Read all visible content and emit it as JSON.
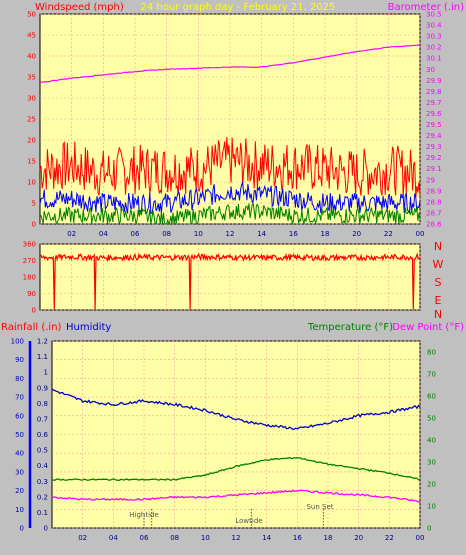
{
  "header": {
    "left_label": "Windspeed (mph)",
    "title": "24 hour graph day - February 21, 2025",
    "right_label": "Barometer (.in)"
  },
  "bottom_header": {
    "rainfall": "Rainfall (.in)",
    "humidity": "Humidity",
    "temperature": "Temperature (°F)",
    "dewpoint": "Dew Point (°F)"
  },
  "annotations": {
    "hightide": "Hightide",
    "lowtide": "Lowtide",
    "sunset": "Sun Set"
  },
  "colors": {
    "background": "#c0c0c0",
    "plot_bg": "#ffffa8",
    "grid": "#ff9a9a",
    "wind_gust": "#ff0000",
    "wind_avg": "#0000ff",
    "wind_low": "#008000",
    "barometer": "#ff00ff",
    "direction": "#ff0000",
    "humidity": "#0000c8",
    "temperature": "#008000",
    "dewpoint": "#ff00ff",
    "rain_axis": "#0000ff",
    "title": "#ffff00"
  },
  "chart_data": [
    {
      "type": "line",
      "name": "wind-barometer",
      "x_ticks": [
        "02",
        "04",
        "06",
        "08",
        "10",
        "12",
        "14",
        "16",
        "18",
        "20",
        "22",
        "00"
      ],
      "left_axis": {
        "label": "Windspeed (mph)",
        "ylim": [
          0,
          50
        ],
        "ticks": [
          0,
          5,
          10,
          15,
          20,
          25,
          30,
          35,
          40,
          45,
          50
        ]
      },
      "right_axis": {
        "label": "Barometer (.in)",
        "ylim": [
          28.6,
          30.5
        ],
        "ticks": [
          "28.6",
          "28.7",
          "28.8",
          "28.9",
          "29",
          "29.1",
          "29.2",
          "29.3",
          "29.4",
          "29.5",
          "29.6",
          "29.7",
          "29.8",
          "29.9",
          "30",
          "30.1",
          "30.2",
          "30.3",
          "30.4",
          "30.5"
        ]
      },
      "series": [
        {
          "name": "Barometer",
          "axis": "right",
          "x": [
            0,
            2,
            4,
            6,
            8,
            10,
            12,
            14,
            16,
            18,
            20,
            22,
            24
          ],
          "values": [
            29.88,
            29.92,
            29.95,
            29.98,
            30.0,
            30.01,
            30.02,
            30.02,
            30.06,
            30.11,
            30.16,
            30.2,
            30.22
          ]
        },
        {
          "name": "Wind Gust",
          "axis": "left",
          "x": [
            0,
            2,
            4,
            6,
            8,
            10,
            12,
            14,
            16,
            18,
            20,
            22,
            24
          ],
          "values": [
            13,
            14,
            12,
            13,
            13,
            13,
            15,
            14,
            14,
            13,
            12,
            13,
            12
          ]
        },
        {
          "name": "Wind Average",
          "axis": "left",
          "x": [
            0,
            2,
            4,
            6,
            8,
            10,
            12,
            14,
            16,
            18,
            20,
            22,
            24
          ],
          "values": [
            6,
            6,
            5,
            5,
            5,
            6,
            8,
            7,
            6,
            5,
            5,
            5,
            5
          ]
        },
        {
          "name": "Wind Low",
          "axis": "left",
          "x": [
            0,
            2,
            4,
            6,
            8,
            10,
            12,
            14,
            16,
            18,
            20,
            22,
            24
          ],
          "values": [
            2,
            2,
            2,
            2,
            1,
            2,
            3,
            3,
            2,
            2,
            2,
            2,
            2
          ]
        }
      ]
    },
    {
      "type": "line",
      "name": "wind-direction",
      "y_ticks": [
        0,
        90,
        180,
        270,
        360
      ],
      "ylim": [
        0,
        360
      ],
      "right_labels": [
        "N",
        "W",
        "S",
        "E",
        "N"
      ],
      "series": [
        {
          "name": "Wind Direction",
          "x": [
            0,
            2,
            4,
            6,
            8,
            10,
            12,
            14,
            16,
            18,
            20,
            22,
            24
          ],
          "values": [
            285,
            290,
            285,
            288,
            286,
            290,
            288,
            285,
            287,
            285,
            286,
            288,
            290
          ]
        }
      ]
    },
    {
      "type": "line",
      "name": "temp-humidity",
      "x_ticks": [
        "02",
        "04",
        "06",
        "08",
        "10",
        "12",
        "14",
        "16",
        "18",
        "20",
        "22",
        "00"
      ],
      "left_axis": {
        "label": "Humidity",
        "ylim": [
          0,
          100
        ],
        "ticks": [
          0,
          10,
          20,
          30,
          40,
          50,
          60,
          70,
          80,
          90,
          100
        ]
      },
      "rain_axis": {
        "label": "Rainfall (.in)",
        "ylim": [
          0,
          1.2
        ],
        "ticks": [
          "0",
          "0.1",
          "0.2",
          "0.3",
          "0.4",
          "0.5",
          "0.6",
          "0.7",
          "0.8",
          "0.9",
          "1",
          "1.1",
          "1.2"
        ]
      },
      "right_axis": {
        "label": "Temperature (°F)",
        "ylim": [
          0,
          85
        ],
        "ticks": [
          0,
          10,
          20,
          30,
          40,
          50,
          60,
          70,
          80
        ]
      },
      "series": [
        {
          "name": "Humidity",
          "axis": "left",
          "x": [
            0,
            2,
            4,
            6,
            8,
            10,
            12,
            14,
            16,
            18,
            20,
            22,
            24
          ],
          "values": [
            74,
            68,
            66,
            68,
            66,
            63,
            58,
            55,
            53,
            56,
            60,
            62,
            65
          ]
        },
        {
          "name": "Temperature",
          "axis": "right",
          "x": [
            0,
            2,
            4,
            6,
            8,
            10,
            12,
            14,
            16,
            18,
            20,
            22,
            24
          ],
          "values": [
            22,
            22,
            22,
            22,
            22,
            24,
            28,
            31,
            32,
            29,
            27,
            25,
            22
          ]
        },
        {
          "name": "Dew Point",
          "axis": "right",
          "x": [
            0,
            2,
            4,
            6,
            8,
            10,
            12,
            14,
            16,
            18,
            20,
            22,
            24
          ],
          "values": [
            14,
            13,
            13,
            13,
            14,
            14,
            15,
            16,
            17,
            16,
            15,
            14,
            12
          ]
        }
      ],
      "rainfall_total": 0,
      "markers": [
        {
          "label": "Hightide",
          "x": 6.5
        },
        {
          "label": "Lowtide",
          "x": 13
        },
        {
          "label": "Sun Set",
          "x": 17.7
        }
      ]
    }
  ]
}
